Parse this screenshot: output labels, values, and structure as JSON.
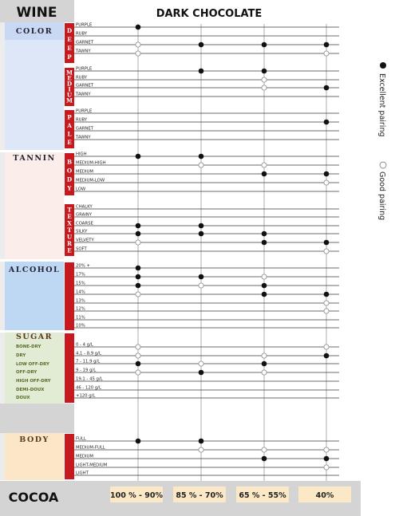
{
  "header": {
    "wine": "WINE",
    "title": "DARK CHOCOLATE"
  },
  "legend": {
    "excellent": "Excellent pairing",
    "good": "Good pairing"
  },
  "footer": {
    "cocoa": "COCOA"
  },
  "colors": {
    "red": "#c8191f",
    "color_bg": "#dde7f8",
    "color_bg_top": "#c9d9f4",
    "tannin_bg": "#fbeeea",
    "alcohol_bg": "#bed8f4",
    "sugar_bg": "#e2ebd4",
    "body_bg": "#fbe7c8",
    "gray": "#d4d4d4",
    "cocoa_box": "#fbe8c6"
  },
  "chart_data": {
    "type": "table",
    "title": "DARK CHOCOLATE",
    "columns": [
      "100 % - 90%",
      "85 % - 70%",
      "65 % - 55%",
      "40%"
    ],
    "legend": [
      "Excellent pairing",
      "Good pairing"
    ],
    "sections": [
      {
        "name": "COLOR",
        "groups": [
          {
            "label": "DEEP",
            "rows": [
              {
                "label": "PURPLE",
                "values": [
                  "excellent",
                  "",
                  "",
                  ""
                ]
              },
              {
                "label": "RUBY",
                "values": [
                  "",
                  "",
                  "",
                  ""
                ]
              },
              {
                "label": "GARNET",
                "values": [
                  "good",
                  "excellent",
                  "excellent",
                  "excellent"
                ]
              },
              {
                "label": "TAWNY",
                "values": [
                  "good",
                  "",
                  "",
                  "good"
                ]
              }
            ]
          },
          {
            "label": "MEDIUM",
            "rows": [
              {
                "label": "PURPLE",
                "values": [
                  "",
                  "excellent",
                  "excellent",
                  ""
                ]
              },
              {
                "label": "RUBY",
                "values": [
                  "",
                  "",
                  "good",
                  ""
                ]
              },
              {
                "label": "GARNET",
                "values": [
                  "",
                  "",
                  "good",
                  "excellent"
                ]
              },
              {
                "label": "TAWNY",
                "values": [
                  "",
                  "",
                  "",
                  ""
                ]
              }
            ]
          },
          {
            "label": "PALE",
            "rows": [
              {
                "label": "PURPLE",
                "values": [
                  "",
                  "",
                  "",
                  ""
                ]
              },
              {
                "label": "RUBY",
                "values": [
                  "",
                  "",
                  "",
                  "excellent"
                ]
              },
              {
                "label": "GARNET",
                "values": [
                  "",
                  "",
                  "",
                  ""
                ]
              },
              {
                "label": "TAWNY",
                "values": [
                  "",
                  "",
                  "",
                  ""
                ]
              }
            ]
          }
        ]
      },
      {
        "name": "TANNIN",
        "groups": [
          {
            "label": "BODY",
            "rows": [
              {
                "label": "HIGH",
                "values": [
                  "excellent",
                  "excellent",
                  "",
                  ""
                ]
              },
              {
                "label": "MEDIUM-HIGH",
                "values": [
                  "",
                  "good",
                  "good",
                  ""
                ]
              },
              {
                "label": "MEDIUM",
                "values": [
                  "",
                  "",
                  "excellent",
                  "excellent"
                ]
              },
              {
                "label": "MEDIUM-LOW",
                "values": [
                  "",
                  "",
                  "",
                  "good"
                ]
              },
              {
                "label": "LOW",
                "values": [
                  "",
                  "",
                  "",
                  ""
                ]
              }
            ]
          },
          {
            "label": "TEXTURE",
            "rows": [
              {
                "label": "CHALKY",
                "values": [
                  "",
                  "",
                  "",
                  ""
                ]
              },
              {
                "label": "GRAINY",
                "values": [
                  "",
                  "",
                  "",
                  ""
                ]
              },
              {
                "label": "COARSE",
                "values": [
                  "excellent",
                  "excellent",
                  "",
                  ""
                ]
              },
              {
                "label": "SILKY",
                "values": [
                  "excellent",
                  "excellent",
                  "excellent",
                  ""
                ]
              },
              {
                "label": "VELVETY",
                "values": [
                  "good",
                  "",
                  "excellent",
                  "excellent"
                ]
              },
              {
                "label": "SOFT",
                "values": [
                  "",
                  "",
                  "",
                  "good"
                ]
              }
            ]
          }
        ]
      },
      {
        "name": "ALCOHOL",
        "groups": [
          {
            "label": "",
            "rows": [
              {
                "label": "20% +",
                "values": [
                  "excellent",
                  "",
                  "",
                  ""
                ]
              },
              {
                "label": "17%",
                "values": [
                  "excellent",
                  "excellent",
                  "good",
                  ""
                ]
              },
              {
                "label": "15%",
                "values": [
                  "excellent",
                  "good",
                  "excellent",
                  ""
                ]
              },
              {
                "label": "14%",
                "values": [
                  "good",
                  "",
                  "excellent",
                  "excellent"
                ]
              },
              {
                "label": "13%",
                "values": [
                  "",
                  "",
                  "",
                  "good"
                ]
              },
              {
                "label": "12%",
                "values": [
                  "",
                  "",
                  "",
                  "good"
                ]
              },
              {
                "label": "11%",
                "values": [
                  "",
                  "",
                  "",
                  ""
                ]
              },
              {
                "label": "10%",
                "values": [
                  "",
                  "",
                  "",
                  ""
                ]
              }
            ]
          }
        ]
      },
      {
        "name": "SUGAR",
        "side_labels": [
          "BONE-DRY",
          "DRY",
          "LOW OFF-DRY",
          "OFF-DRY",
          "HIGH OFF-DRY",
          "DEMI-DOUX",
          "DOUX"
        ],
        "groups": [
          {
            "label": "",
            "rows": [
              {
                "label": "0 - 4 g/L",
                "values": [
                  "good",
                  "",
                  "",
                  "good"
                ]
              },
              {
                "label": "4,1 - 8,9 g/L",
                "values": [
                  "good",
                  "",
                  "good",
                  "excellent"
                ]
              },
              {
                "label": "7 - 11,9 g/L",
                "values": [
                  "excellent",
                  "good",
                  "excellent",
                  ""
                ]
              },
              {
                "label": "9 - 19 g/L",
                "values": [
                  "good",
                  "excellent",
                  "good",
                  ""
                ]
              },
              {
                "label": "19,1 - 45 g/L",
                "values": [
                  "",
                  "",
                  "",
                  ""
                ]
              },
              {
                "label": "46 - 120 g/L",
                "values": [
                  "",
                  "",
                  "",
                  ""
                ]
              },
              {
                "label": "+120 g/L",
                "values": [
                  "",
                  "",
                  "",
                  ""
                ]
              }
            ]
          }
        ]
      },
      {
        "name": "BODY",
        "groups": [
          {
            "label": "",
            "rows": [
              {
                "label": "FULL",
                "values": [
                  "excellent",
                  "excellent",
                  "",
                  ""
                ]
              },
              {
                "label": "MEDIUM-FULL",
                "values": [
                  "",
                  "good",
                  "good",
                  "good"
                ]
              },
              {
                "label": "MEDIUM",
                "values": [
                  "",
                  "",
                  "excellent",
                  "excellent"
                ]
              },
              {
                "label": "LIGHT-MEDIUM",
                "values": [
                  "",
                  "",
                  "",
                  "good"
                ]
              },
              {
                "label": "LIGHT",
                "values": [
                  "",
                  "",
                  "",
                  ""
                ]
              }
            ]
          }
        ]
      }
    ]
  }
}
